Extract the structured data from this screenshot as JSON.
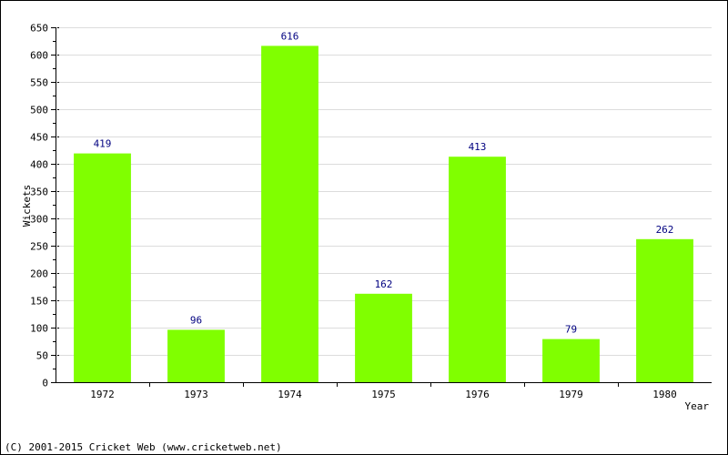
{
  "chart_data": {
    "type": "bar",
    "categories": [
      "1972",
      "1973",
      "1974",
      "1975",
      "1976",
      "1979",
      "1980"
    ],
    "values": [
      419,
      96,
      616,
      162,
      413,
      79,
      262
    ],
    "data_labels": [
      "419",
      "96",
      "616",
      "162",
      "413",
      "79",
      "262"
    ],
    "xlabel": "Year",
    "ylabel": "Wickets",
    "ylim": [
      0,
      650
    ],
    "ytick_step": 50,
    "grid": true,
    "bar_color": "#80ff00",
    "label_color": "#000080"
  },
  "footer": {
    "copyright": "(C) 2001-2015 Cricket Web (www.cricketweb.net)"
  }
}
